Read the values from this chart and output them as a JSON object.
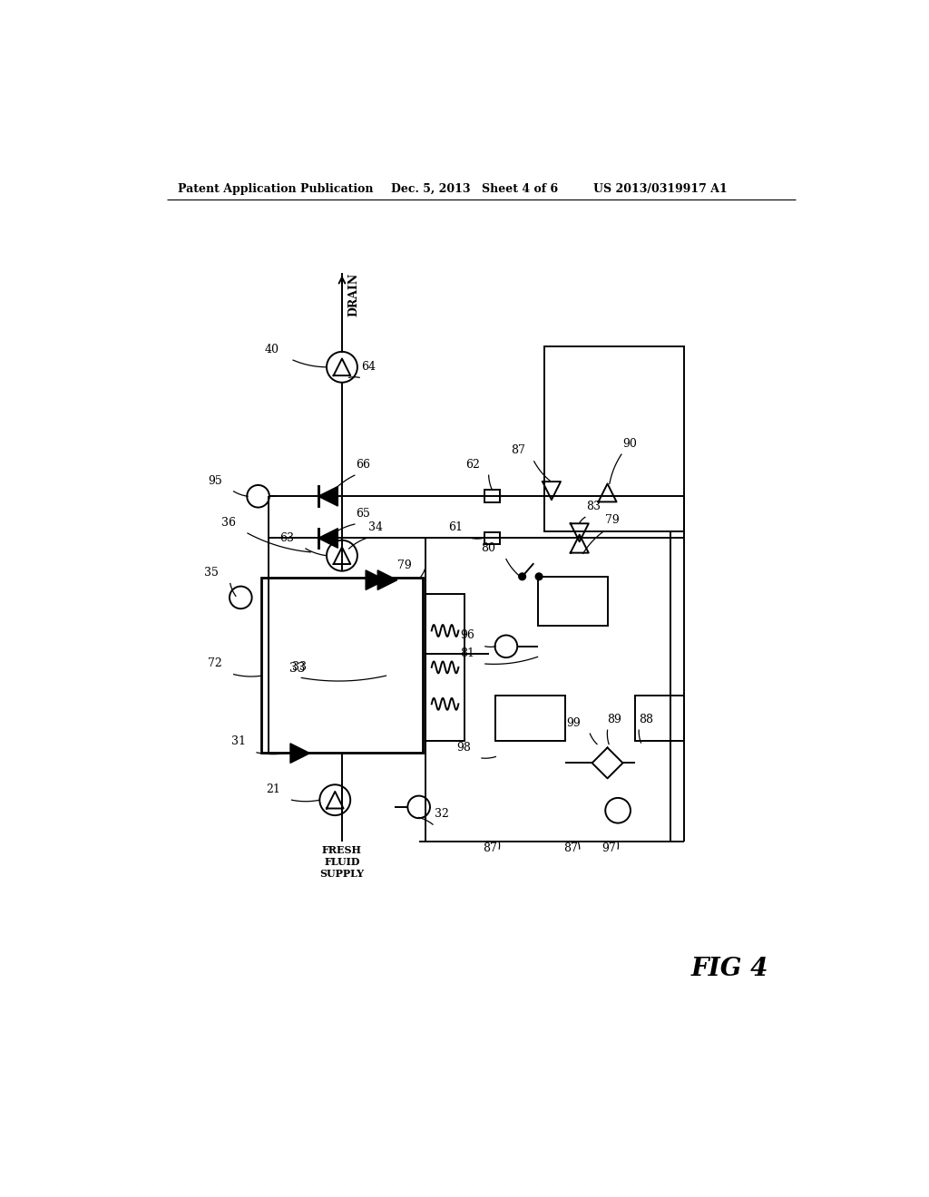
{
  "bg_color": "#ffffff",
  "header_left": "Patent Application Publication",
  "header_date": "Dec. 5, 2013",
  "header_sheet": "Sheet 4 of 6",
  "header_patent": "US 2013/0319917 A1",
  "fig_label": "FIG 4",
  "drain_label": "DRAIN",
  "fresh_fluid_label": "FRESH\nFLUID\nSUPPLY",
  "lw": 1.4,
  "lw_thick": 2.0,
  "pump_r": 0.2,
  "sensor_r": 0.16,
  "check_s": 0.15,
  "tri_s": 0.15
}
